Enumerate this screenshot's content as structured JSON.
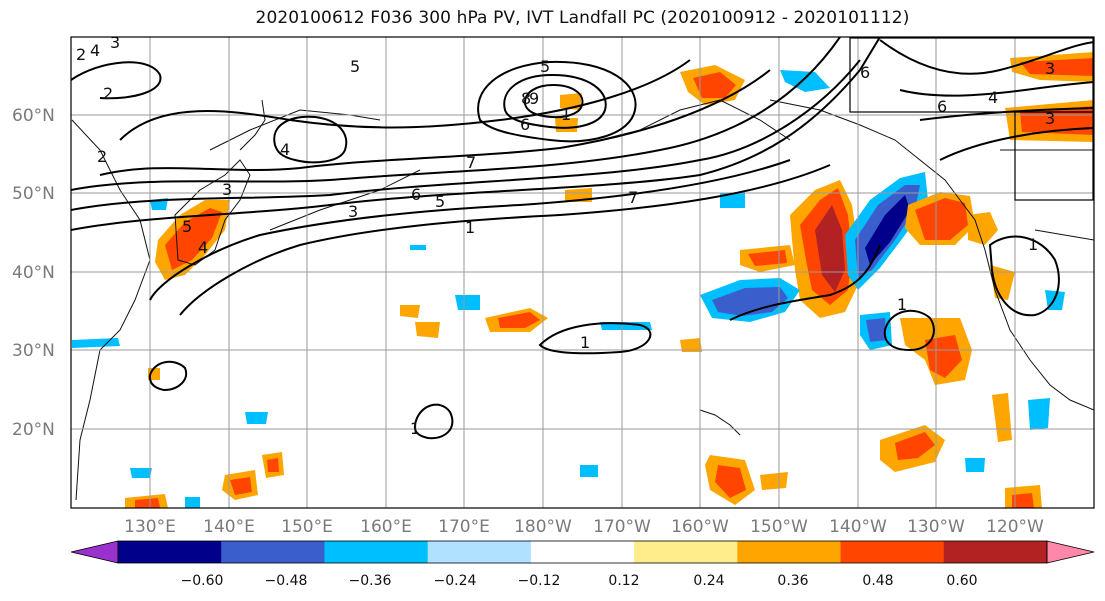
{
  "title": "2020100612 F036 300 hPa PV, IVT Landfall PC (2020100912 - 2020101112)",
  "lat_labels": [
    "60°N",
    "50°N",
    "40°N",
    "30°N",
    "20°N"
  ],
  "lon_labels": [
    "130°E",
    "140°E",
    "150°E",
    "160°E",
    "170°E",
    "180°W",
    "170°W",
    "160°W",
    "150°W",
    "140°W",
    "130°W",
    "120°W"
  ],
  "colorbar": {
    "ticks": [
      "−0.60",
      "−0.48",
      "−0.36",
      "−0.24",
      "−0.12",
      "0.12",
      "0.24",
      "0.36",
      "0.48",
      "0.60"
    ],
    "colors": [
      "#9932cc",
      "#00008b",
      "#3a5fcd",
      "#00bfff",
      "#b0e2ff",
      "#ffffff",
      "#ffec8b",
      "#ffa500",
      "#ff4500",
      "#b22222",
      "#ff88aa"
    ]
  },
  "pv_contour_labels": [
    "1",
    "2",
    "3",
    "4",
    "5",
    "6",
    "7",
    "8",
    "9",
    "1",
    "2",
    "3",
    "4",
    "5",
    "6",
    "7",
    "1",
    "1",
    "1",
    "1",
    "3",
    "4",
    "6",
    "3",
    "5",
    "6",
    "3",
    "2",
    "4",
    "5"
  ]
}
